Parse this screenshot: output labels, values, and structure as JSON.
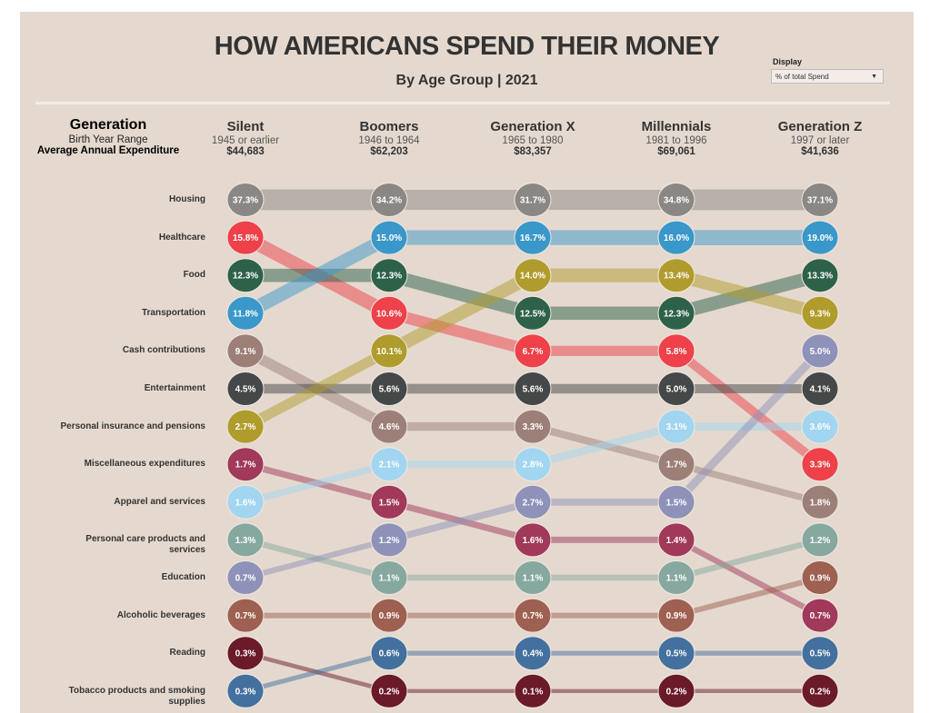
{
  "title": "HOW AMERICANS SPEND THEIR MONEY",
  "subtitle": "By Age Group | 2021",
  "display_filter": {
    "label": "Display",
    "selected": "% of total Spend"
  },
  "generation_header": {
    "title": "Generation",
    "range_label": "Birth Year Range",
    "expenditure_label": "Average Annual Expenditure"
  },
  "generations": [
    {
      "name": "Silent",
      "range": "1945 or earlier",
      "expenditure": "$44,683"
    },
    {
      "name": "Boomers",
      "range": "1946 to 1964",
      "expenditure": "$62,203"
    },
    {
      "name": "Generation X",
      "range": "1965 to 1980",
      "expenditure": "$83,357"
    },
    {
      "name": "Millennials",
      "range": "1981 to 1996",
      "expenditure": "$69,061"
    },
    {
      "name": "Generation Z",
      "range": "1997 or later",
      "expenditure": "$41,636"
    }
  ],
  "chart_data": {
    "type": "bump",
    "categories": [
      "Silent",
      "Boomers",
      "Generation X",
      "Millennials",
      "Generation Z"
    ],
    "unit": "%",
    "series": [
      {
        "name": "Housing",
        "color": "#8a8784",
        "values": [
          37.3,
          34.2,
          31.7,
          34.8,
          37.1
        ]
      },
      {
        "name": "Healthcare",
        "color": "#ee4149",
        "values": [
          15.8,
          10.6,
          6.7,
          5.8,
          3.3
        ]
      },
      {
        "name": "Food",
        "color": "#2d6249",
        "values": [
          12.3,
          12.3,
          12.5,
          12.3,
          13.3
        ]
      },
      {
        "name": "Transportation",
        "color": "#3a97c9",
        "values": [
          11.8,
          15.0,
          16.7,
          16.0,
          19.0
        ]
      },
      {
        "name": "Cash contributions",
        "color": "#9c8078",
        "values": [
          9.1,
          4.6,
          3.3,
          1.7,
          1.8
        ]
      },
      {
        "name": "Entertainment",
        "color": "#454848",
        "values": [
          4.5,
          5.6,
          5.6,
          5.0,
          4.1
        ]
      },
      {
        "name": "Personal insurance and pensions",
        "color": "#b09c2c",
        "values": [
          2.7,
          10.1,
          14.0,
          13.4,
          9.3
        ]
      },
      {
        "name": "Miscellaneous expenditures",
        "color": "#a0395a",
        "values": [
          1.7,
          1.5,
          1.6,
          1.4,
          0.7
        ]
      },
      {
        "name": "Apparel and services",
        "color": "#a2d5f0",
        "values": [
          1.6,
          2.1,
          2.8,
          3.1,
          3.6
        ]
      },
      {
        "name": "Personal care products and services",
        "color": "#86a89e",
        "values": [
          1.3,
          1.1,
          1.1,
          1.1,
          1.2
        ]
      },
      {
        "name": "Education",
        "color": "#8e92b8",
        "values": [
          0.7,
          1.2,
          2.7,
          1.5,
          5.0
        ]
      },
      {
        "name": "Alcoholic beverages",
        "color": "#9e6050",
        "values": [
          0.7,
          0.9,
          0.7,
          0.9,
          0.9
        ]
      },
      {
        "name": "Reading",
        "color": "#6a1a28",
        "values": [
          0.3,
          0.2,
          0.1,
          0.2,
          0.2
        ]
      },
      {
        "name": "Tobacco products and smoking supplies",
        "color": "#43709e",
        "values": [
          0.3,
          0.6,
          0.4,
          0.5,
          0.5
        ]
      }
    ]
  },
  "row_labels": [
    "Housing",
    "Healthcare",
    "Food",
    "Transportation",
    "Cash contributions",
    "Entertainment",
    "Personal insurance and pensions",
    "Miscellaneous expenditures",
    "Apparel and services",
    "Personal care products and services",
    "Education",
    "Alcoholic beverages",
    "Reading",
    "Tobacco products and smoking supplies"
  ],
  "colors": {
    "background": "#e5d9cf"
  }
}
